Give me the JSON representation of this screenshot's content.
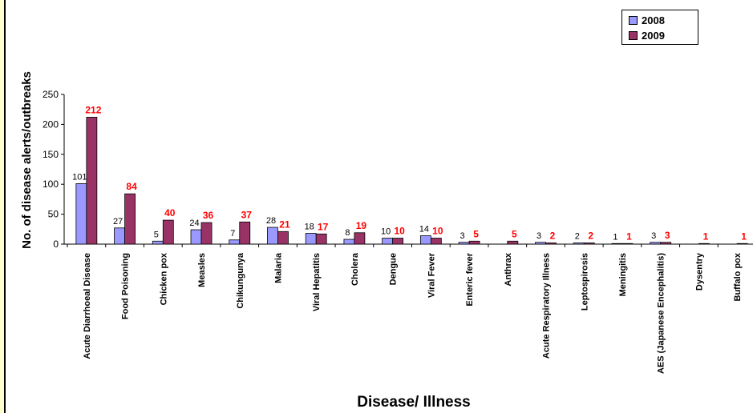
{
  "chart_data": {
    "type": "bar",
    "title": "",
    "xlabel": "Disease/ Illness",
    "ylabel": "No. of disease alerts/outbreaks",
    "ylim": [
      0,
      250
    ],
    "yticks": [
      0,
      50,
      100,
      150,
      200,
      250
    ],
    "grid": false,
    "legend_position": "top-right",
    "categories": [
      "Acute Diarrhoeal Disease",
      "Food Poisoning",
      "Chicken pox",
      "Measles",
      "Chikungunya",
      "Malaria",
      "Viral Hepatitis",
      "Cholera",
      "Dengue",
      "Viral Fever",
      "Enteric fever",
      "Anthrax",
      "Acute Respiratory Illness",
      "Leptospirosis",
      "Meningitis",
      "AES (Japanese Encephalitis)",
      "Dysentry",
      "Buffalo pox"
    ],
    "series": [
      {
        "name": "2008",
        "color": "#9999ff",
        "label_color": "#000000",
        "values": [
          101,
          27,
          5,
          24,
          7,
          28,
          18,
          8,
          10,
          14,
          3,
          0,
          3,
          2,
          1,
          3,
          0,
          0
        ],
        "labels": [
          "101",
          "27",
          "5",
          "24",
          "7",
          "28",
          "18",
          "8",
          "10",
          "14",
          "3",
          "",
          "3",
          "2",
          "1",
          "3",
          "",
          ""
        ]
      },
      {
        "name": "2009",
        "color": "#993366",
        "label_color": "#ff0000",
        "values": [
          212,
          84,
          40,
          36,
          37,
          21,
          17,
          19,
          10,
          10,
          5,
          5,
          2,
          2,
          1,
          3,
          1,
          1
        ],
        "labels": [
          "212",
          "84",
          "40",
          "36",
          "37",
          "21",
          "17",
          "19",
          "10",
          "10",
          "5",
          "5",
          "2",
          "2",
          "1",
          "3",
          "1",
          "1"
        ]
      }
    ]
  }
}
